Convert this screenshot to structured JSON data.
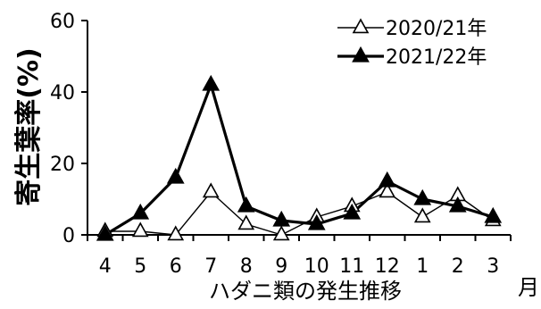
{
  "chart_data": {
    "type": "line",
    "xlabel": "ハダニ類の発生推移",
    "x_unit": "月",
    "ylabel": "寄生葉率(%)",
    "ylim": [
      0,
      60
    ],
    "yticks": [
      0,
      20,
      40,
      60
    ],
    "categories": [
      "4",
      "5",
      "6",
      "7",
      "8",
      "9",
      "10",
      "11",
      "12",
      "1",
      "2",
      "3"
    ],
    "grid": false,
    "legend_position": "top-right",
    "series": [
      {
        "name": "2020/21年",
        "marker": "open-triangle",
        "line_width": "thin",
        "values": [
          1,
          1,
          0,
          12,
          3,
          0,
          5,
          8,
          12,
          5,
          11,
          4
        ]
      },
      {
        "name": "2021/22年",
        "marker": "filled-triangle",
        "line_width": "thick",
        "values": [
          0,
          6,
          16,
          42,
          8,
          4,
          3,
          6,
          15,
          10,
          8,
          5
        ]
      }
    ]
  }
}
